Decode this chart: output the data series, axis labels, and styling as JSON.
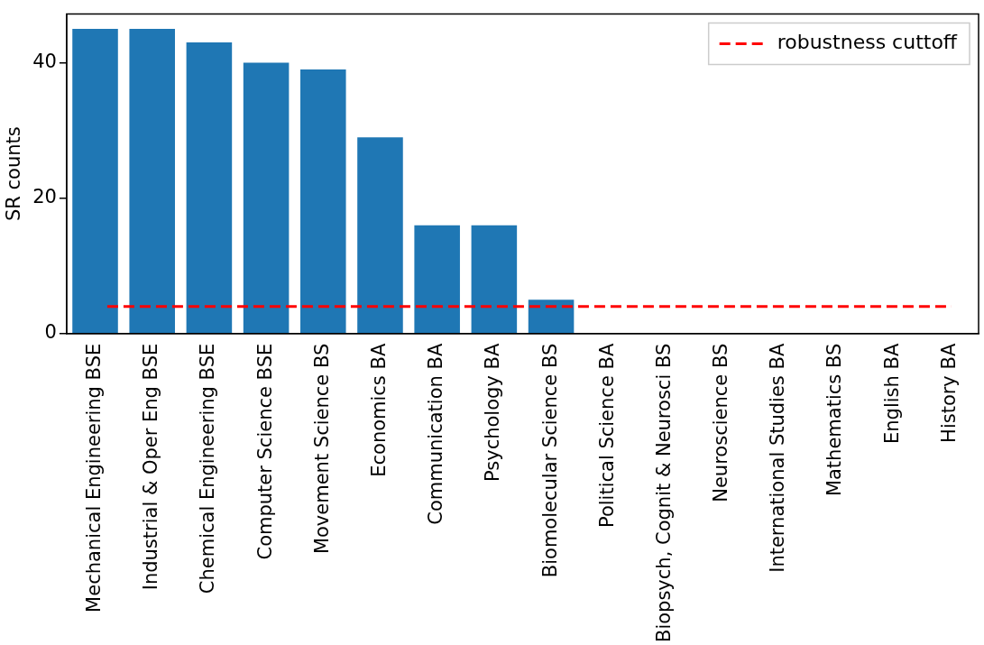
{
  "chart_data": {
    "type": "bar",
    "ylabel": "SR counts",
    "categories": [
      "Mechanical Engineering BSE",
      "Industrial & Oper Eng BSE",
      "Chemical Engineering BSE",
      "Computer Science BSE",
      "Movement Science BS",
      "Economics BA",
      "Communication BA",
      "Psychology BA",
      "Biomolecular Science BS",
      "Political Science BA",
      "Biopsych, Cognit & Neurosci BS",
      "Neuroscience BS",
      "International Studies BA",
      "Mathematics BS",
      "English BA",
      "History BA"
    ],
    "values": [
      45,
      45,
      43,
      40,
      39,
      29,
      16,
      16,
      5,
      0,
      0,
      0,
      0,
      0,
      0,
      0
    ],
    "color": "#1f77b4",
    "ylim": [
      0,
      47.2
    ],
    "yticks": [
      0,
      20,
      40
    ],
    "grid": false,
    "ref_lines": [
      {
        "axis": "y",
        "value": 4,
        "label": "robustness cuttoff",
        "color": "#ff0000",
        "line_style": "dashed"
      }
    ],
    "legend": "top right"
  }
}
